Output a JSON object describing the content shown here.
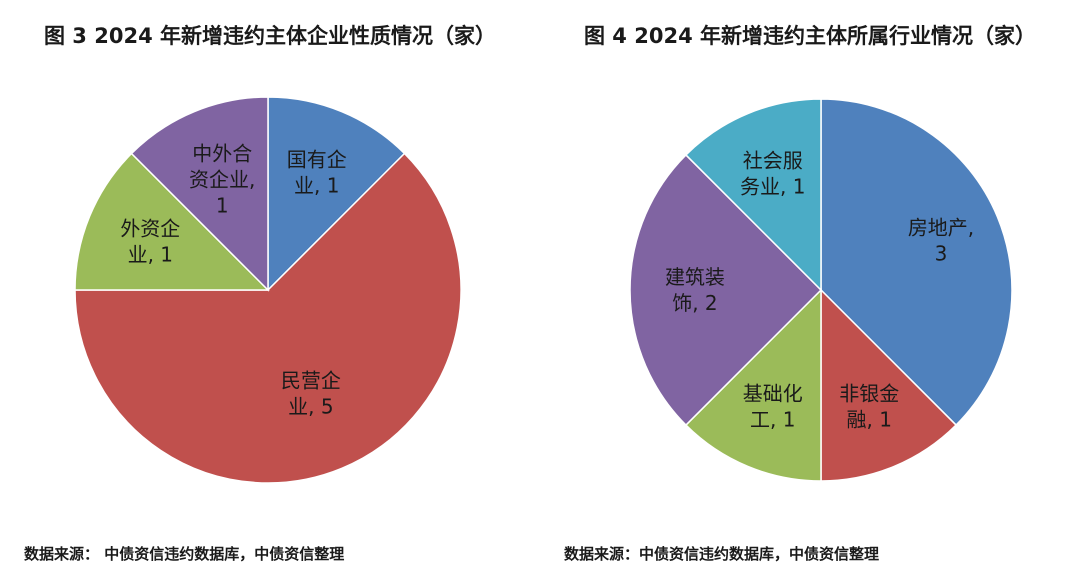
{
  "chart_data": [
    {
      "type": "pie",
      "title": "图 3 2024 年新增违约主体企业性质情况（家）",
      "slices": [
        {
          "label_lines": [
            "国有企",
            "业, 1"
          ],
          "value": 1,
          "color": "#4F81BD"
        },
        {
          "label_lines": [
            "民营企",
            "业, 5"
          ],
          "value": 5,
          "color": "#C0504D"
        },
        {
          "label_lines": [
            "外资企",
            "业, 1"
          ],
          "value": 1,
          "color": "#9BBB59"
        },
        {
          "label_lines": [
            "中外合",
            "资企业,",
            "1"
          ],
          "value": 1,
          "color": "#8064A2"
        }
      ],
      "source": "数据来源： 中债资信违约数据库，中债资信整理"
    },
    {
      "type": "pie",
      "title": "图 4 2024 年新增违约主体所属行业情况（家）",
      "slices": [
        {
          "label_lines": [
            "房地产,",
            "3"
          ],
          "value": 3,
          "color": "#4F81BD"
        },
        {
          "label_lines": [
            "非银金",
            "融, 1"
          ],
          "value": 1,
          "color": "#C0504D"
        },
        {
          "label_lines": [
            "基础化",
            "工, 1"
          ],
          "value": 1,
          "color": "#9BBB59"
        },
        {
          "label_lines": [
            "建筑装",
            "饰, 2"
          ],
          "value": 2,
          "color": "#8064A2"
        },
        {
          "label_lines": [
            "社会服",
            "务业, 1"
          ],
          "value": 1,
          "color": "#4BACC6"
        }
      ],
      "source": "数据来源：中债资信违约数据库，中债资信整理"
    }
  ]
}
